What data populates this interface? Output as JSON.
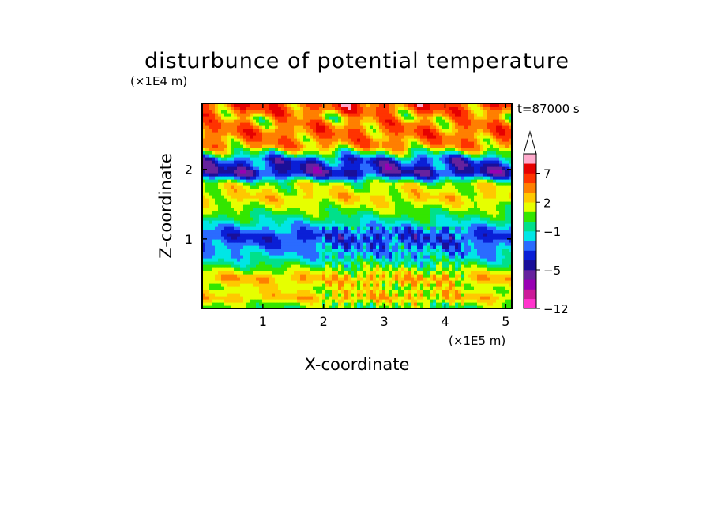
{
  "chart_data": {
    "type": "heatmap",
    "title": "disturbunce of potential temperature",
    "time_label": "t=87000 s",
    "xlabel": "X-coordinate",
    "ylabel": "Z-coordinate",
    "x_unit": "(×1E5 m)",
    "y_unit": "(×1E4 m)",
    "x_range": [
      0,
      5.1
    ],
    "y_range": [
      0,
      2.95
    ],
    "x_ticks": [
      1,
      2,
      3,
      4,
      5
    ],
    "y_ticks": [
      1,
      2
    ],
    "x_tick_labels": [
      "1",
      "2",
      "3",
      "4",
      "5"
    ],
    "y_tick_labels": [
      "1",
      "2"
    ],
    "colorbar": {
      "levels_bottom_to_top": [
        -12,
        -10,
        -8,
        -6,
        -5,
        -4,
        -3,
        -2,
        -1,
        0,
        1,
        2,
        3,
        5,
        7,
        9,
        11
      ],
      "colors_bottom_to_top": [
        "#ff33cc",
        "#cc1a99",
        "#9900b3",
        "#66229e",
        "#1a0f99",
        "#0a1fd6",
        "#2a6bff",
        "#00e6e6",
        "#00e08a",
        "#33e600",
        "#e6ff00",
        "#ffc800",
        "#ff7f00",
        "#ff3300",
        "#e60000",
        "#ffaacc"
      ],
      "tick_labels": [
        "−12",
        "−5",
        "−1",
        "2",
        "7"
      ],
      "tick_values": [
        -12,
        -5,
        -1,
        2,
        7
      ],
      "extend_top": true
    },
    "bands": [
      {
        "z": 0.05,
        "value": 0.5
      },
      {
        "z": 0.15,
        "value": 2.5
      },
      {
        "z": 0.3,
        "value": 1.5
      },
      {
        "z": 0.45,
        "value": 2.8
      },
      {
        "z": 0.6,
        "value": 0.2
      },
      {
        "z": 0.75,
        "value": -1.5
      },
      {
        "z": 0.9,
        "value": -2.5
      },
      {
        "z": 1.05,
        "value": -3.5
      },
      {
        "z": 1.2,
        "value": -1.5
      },
      {
        "z": 1.4,
        "value": 0.5
      },
      {
        "z": 1.6,
        "value": 2.2
      },
      {
        "z": 1.8,
        "value": 1.0
      },
      {
        "z": 1.95,
        "value": -4.5
      },
      {
        "z": 2.15,
        "value": -3.0
      },
      {
        "z": 2.35,
        "value": 3.5
      },
      {
        "z": 2.55,
        "value": 4.5
      },
      {
        "z": 2.75,
        "value": 3.0
      },
      {
        "z": 2.9,
        "value": 5.5
      }
    ]
  }
}
